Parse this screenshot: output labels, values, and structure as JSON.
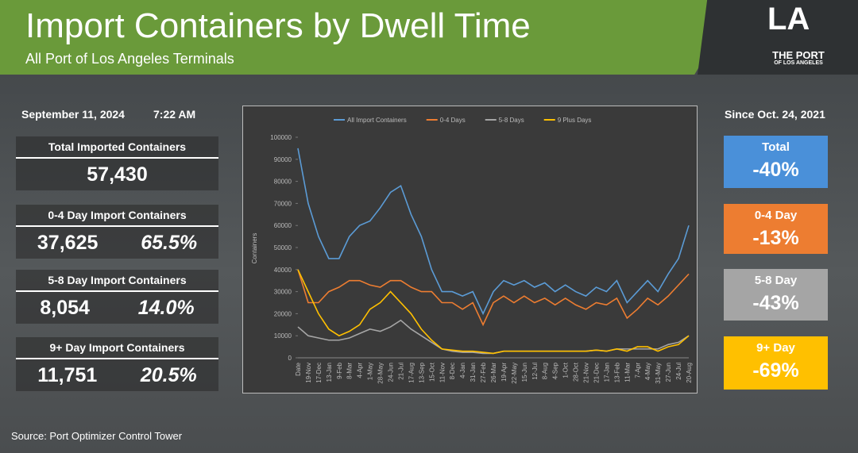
{
  "header": {
    "title": "Import Containers by Dwell Time",
    "subtitle": "All Port of Los Angeles Terminals",
    "logo": {
      "mark": "LA",
      "line1": "THE PORT",
      "line2": "OF LOS ANGELES"
    }
  },
  "left": {
    "date": "September 11, 2024",
    "time": "7:22 AM",
    "stats": [
      {
        "label": "Total Imported Containers",
        "value": "57,430"
      },
      {
        "label": "0-4 Day Import Containers",
        "value": "37,625",
        "percent": "65.5%"
      },
      {
        "label": "5-8 Day Import Containers",
        "value": "8,054",
        "percent": "14.0%"
      },
      {
        "label": "9+ Day Import Containers",
        "value": "11,751",
        "percent": "20.5%"
      }
    ]
  },
  "right": {
    "since": "Since Oct. 24, 2021",
    "boxes": [
      {
        "label": "Total",
        "value": "-40%",
        "color": "#4a90d9"
      },
      {
        "label": "0-4 Day",
        "value": "-13%",
        "color": "#ed7d31"
      },
      {
        "label": "5-8 Day",
        "value": "-43%",
        "color": "#a5a5a5"
      },
      {
        "label": "9+ Day",
        "value": "-69%",
        "color": "#ffc000"
      }
    ]
  },
  "source": "Source: Port Optimizer Control Tower",
  "chart_data": {
    "type": "line",
    "y_label": "Containers",
    "legend": "top",
    "grid": false,
    "categories": [
      "Date",
      "19-Nov",
      "17-Dec",
      "13-Jan",
      "9-Feb",
      "8-Mar",
      "4-Apr",
      "1-May",
      "28-May",
      "24-Jun",
      "21-Jul",
      "17-Aug",
      "13-Sep",
      "15-Oct",
      "11-Nov",
      "8-Dec",
      "4-Jan",
      "31-Jan",
      "27-Feb",
      "26-Mar",
      "19-Apr",
      "22-May",
      "15-Jun",
      "12-Jul",
      "8-Aug",
      "4-Sep",
      "1-Oct",
      "28-Oct",
      "21-Nov",
      "21-Dec",
      "17-Jan",
      "13-Feb",
      "11-Mar",
      "7-Apr",
      "4-May",
      "31-May",
      "27-Jun",
      "24-Jul",
      "20-Aug"
    ],
    "series": [
      {
        "name": "All Import Containers",
        "color": "#5b9bd5",
        "values": [
          95000,
          70000,
          55000,
          45000,
          45000,
          55000,
          60000,
          62000,
          68000,
          75000,
          78000,
          65000,
          55000,
          40000,
          30000,
          30000,
          28000,
          30000,
          20000,
          30000,
          35000,
          33000,
          35000,
          32000,
          34000,
          30000,
          33000,
          30000,
          28000,
          32000,
          30000,
          35000,
          25000,
          30000,
          35000,
          30000,
          38000,
          45000,
          60000
        ]
      },
      {
        "name": "0-4 Days",
        "color": "#ed7d31",
        "values": [
          40000,
          25000,
          25000,
          30000,
          32000,
          35000,
          35000,
          33000,
          32000,
          35000,
          35000,
          32000,
          30000,
          30000,
          25000,
          25000,
          22000,
          25000,
          15000,
          25000,
          28000,
          25000,
          28000,
          25000,
          27000,
          24000,
          27000,
          24000,
          22000,
          25000,
          24000,
          27000,
          18000,
          22000,
          27000,
          24000,
          28000,
          33000,
          38000
        ]
      },
      {
        "name": "5-8 Days",
        "color": "#a5a5a5",
        "values": [
          14000,
          10000,
          9000,
          8000,
          8000,
          9000,
          11000,
          13000,
          12000,
          14000,
          17000,
          13000,
          10000,
          7000,
          4000,
          3000,
          2500,
          2500,
          2000,
          2000,
          3000,
          3000,
          3000,
          3000,
          3000,
          3000,
          3000,
          3000,
          3000,
          3500,
          3000,
          4000,
          4000,
          4000,
          4000,
          4000,
          6000,
          7000,
          10000
        ]
      },
      {
        "name": "9 Plus Days",
        "color": "#ffc000",
        "values": [
          40000,
          30000,
          20000,
          13000,
          10000,
          12000,
          15000,
          22000,
          25000,
          30000,
          25000,
          20000,
          13000,
          8000,
          4000,
          3500,
          3000,
          3000,
          2500,
          2000,
          3000,
          3000,
          3000,
          3000,
          3000,
          3000,
          3000,
          3000,
          3000,
          3500,
          3000,
          4000,
          3000,
          5000,
          5000,
          3000,
          5000,
          6000,
          10000
        ]
      }
    ],
    "ylim": [
      0,
      100000
    ],
    "yticks": [
      0,
      10000,
      20000,
      30000,
      40000,
      50000,
      60000,
      70000,
      80000,
      90000,
      100000
    ]
  }
}
